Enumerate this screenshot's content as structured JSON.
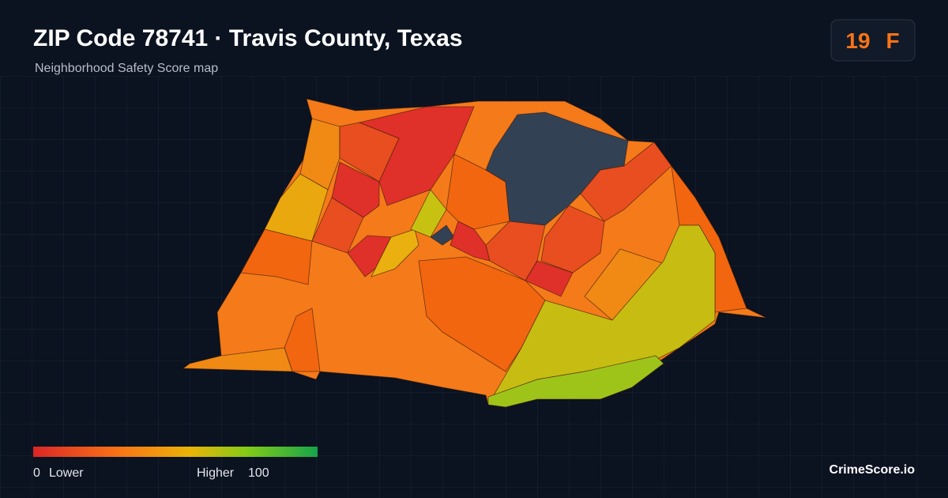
{
  "header": {
    "title": "ZIP Code 78741 · Travis County, Texas",
    "subtitle": "Neighborhood Safety Score map"
  },
  "score": {
    "value": "19",
    "grade": "F"
  },
  "legend": {
    "min": "0",
    "min_label": "Lower",
    "max_label": "Higher",
    "max": "100"
  },
  "brand": "CrimeScore.io"
}
